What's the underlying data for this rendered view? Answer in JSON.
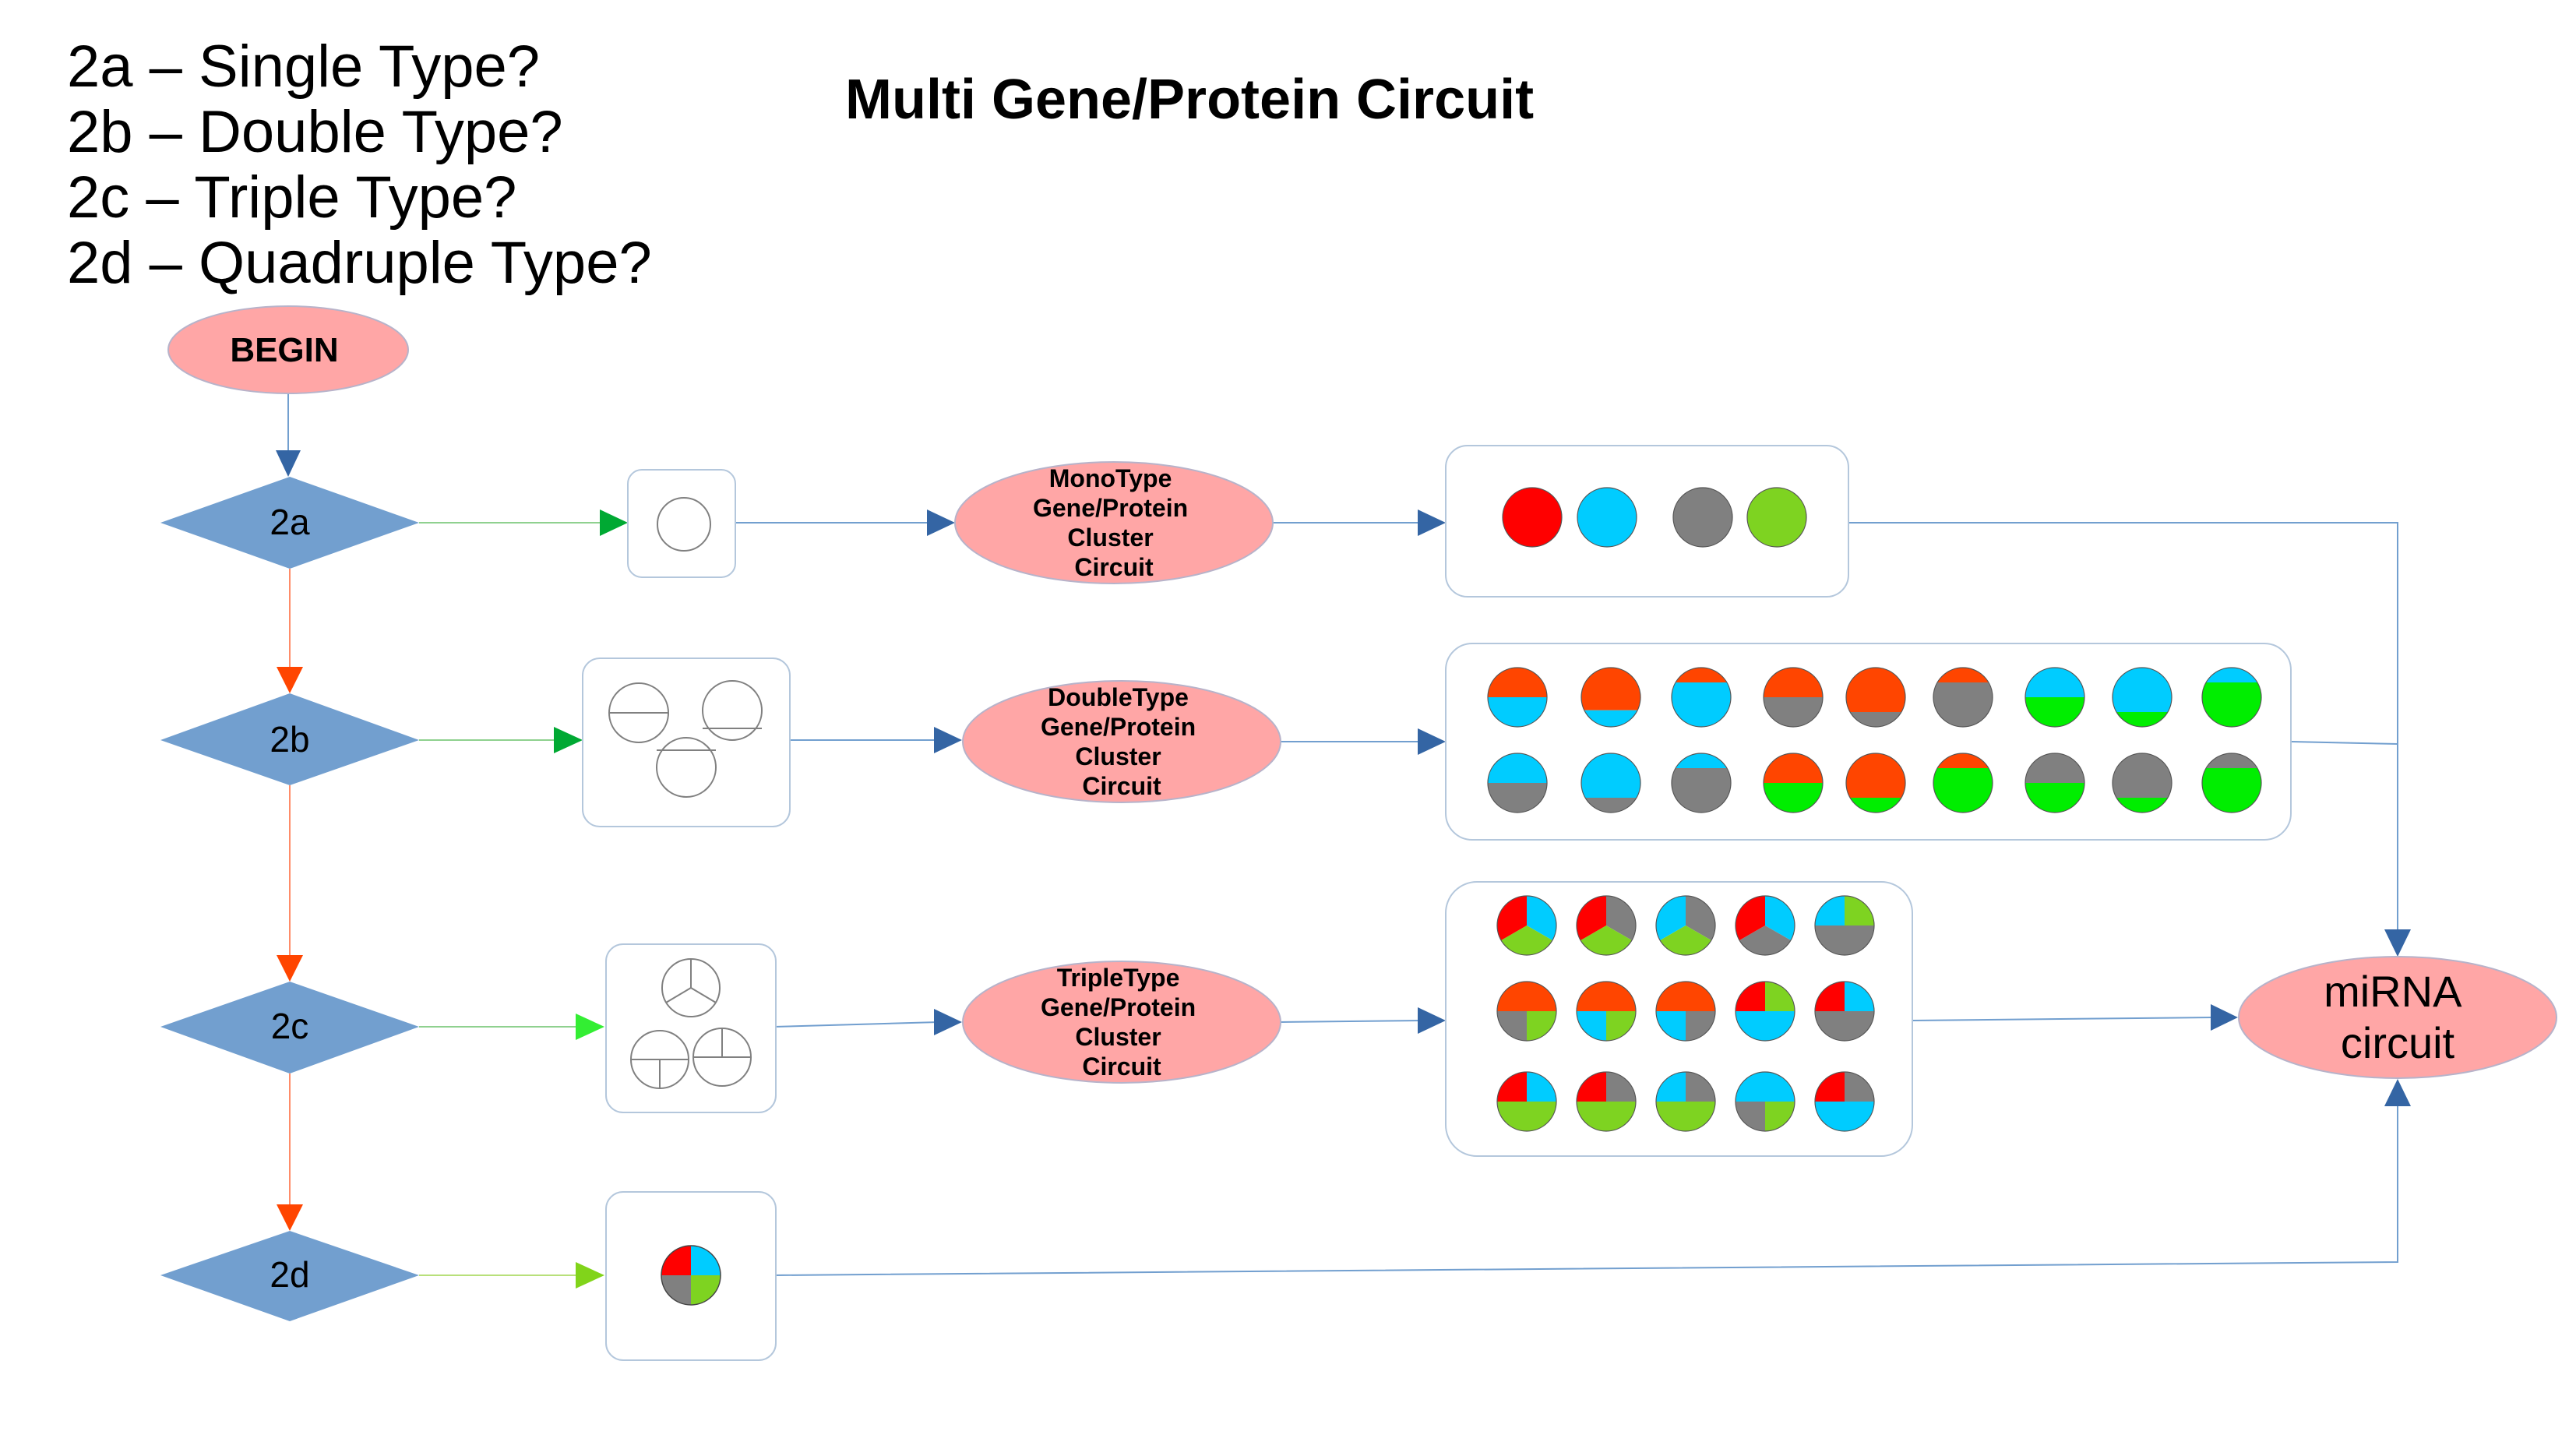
{
  "title": "Multi Gene/Protein Circuit",
  "legend": [
    "2a – Single Type?",
    "2b – Double Type?",
    "2c – Triple Type?",
    "2d – Quadruple Type?"
  ],
  "nodes": {
    "begin": "BEGIN",
    "decision_2a": "2a",
    "decision_2b": "2b",
    "decision_2c": "2c",
    "decision_2d": "2d",
    "monotype": [
      "MonoType",
      "Gene/Protein",
      "Cluster",
      "Circuit"
    ],
    "doubletype": [
      "DoubleType",
      "Gene/Protein",
      "Cluster",
      "Circuit"
    ],
    "tripletype": [
      "TripleType",
      "Gene/Protein",
      "Cluster",
      "Circuit"
    ],
    "mirna": [
      "miRNA",
      "circuit"
    ]
  },
  "colors": {
    "red": "#ff0000",
    "orange": "#ff4500",
    "cyan": "#00ccff",
    "gray": "#808080",
    "green": "#00ee00",
    "lime": "#7ed321",
    "diamond": "#729fcf",
    "ellipse": "#ffa6a6",
    "edge_blue": "#3465a4"
  }
}
